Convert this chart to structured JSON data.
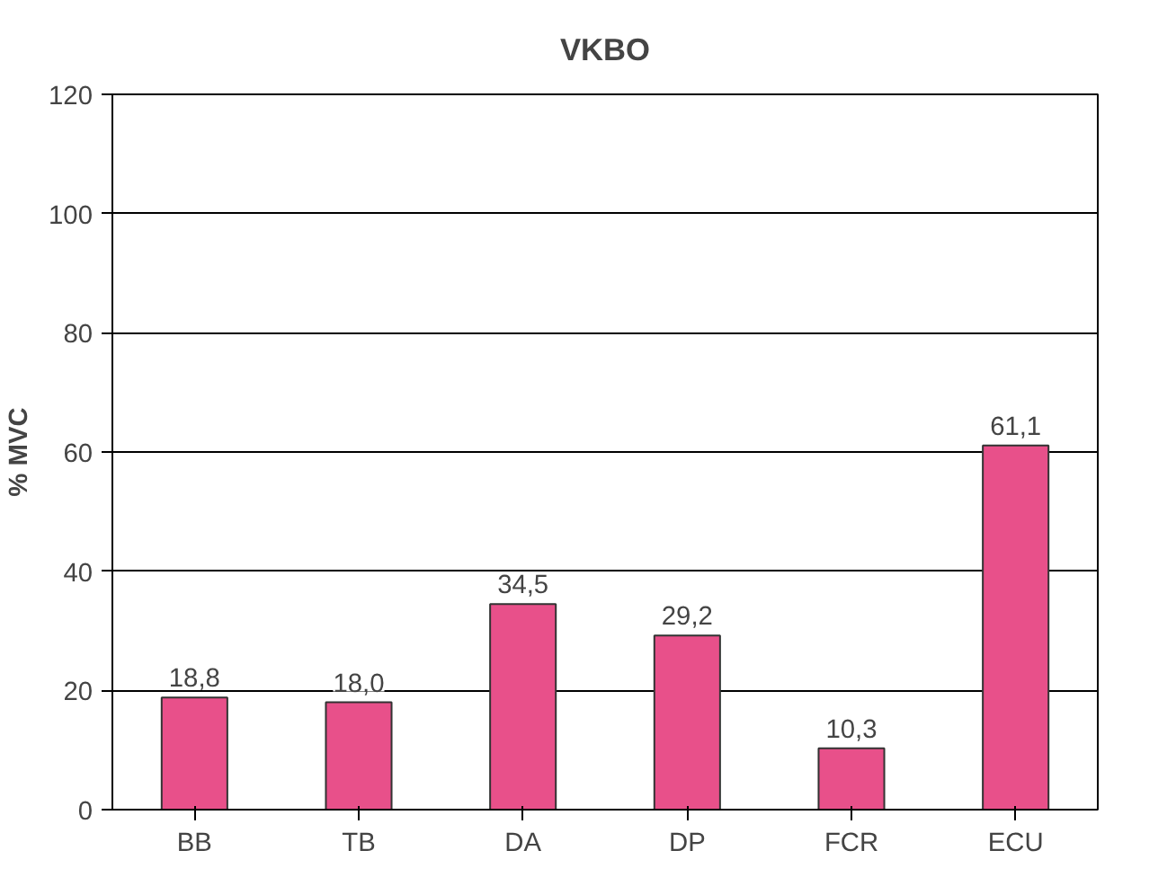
{
  "chart_data": {
    "type": "bar",
    "title": "VKBO",
    "ylabel": "% MVC",
    "categories": [
      "BB",
      "TB",
      "DA",
      "DP",
      "FCR",
      "ECU"
    ],
    "values": [
      18.8,
      18.0,
      34.5,
      29.2,
      10.3,
      61.1
    ],
    "value_labels": [
      "18,8",
      "18,0",
      "34,5",
      "29,2",
      "10,3",
      "61,1"
    ],
    "color": "#e8508a",
    "ylim": [
      0,
      120
    ],
    "yticks": [
      0,
      20,
      40,
      60,
      80,
      100,
      120
    ],
    "grid": "y"
  }
}
